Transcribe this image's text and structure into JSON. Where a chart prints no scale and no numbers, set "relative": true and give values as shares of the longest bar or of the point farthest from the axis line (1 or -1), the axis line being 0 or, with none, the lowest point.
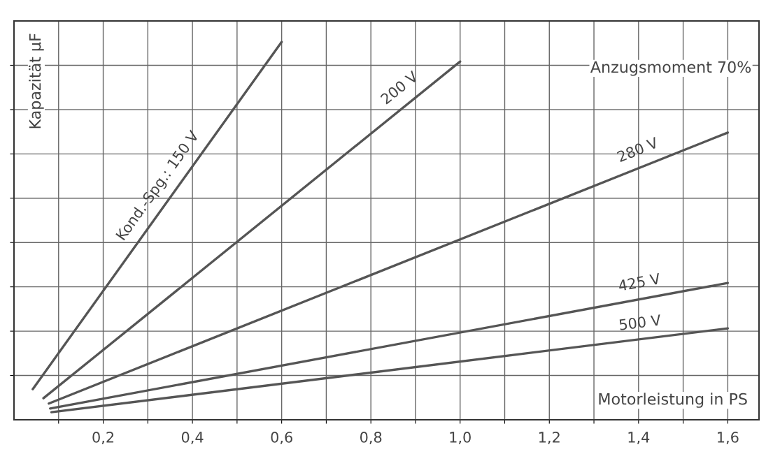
{
  "chart_data": {
    "type": "line",
    "relative": true,
    "xlabel": "Motorleistung in PS",
    "ylabel": "Kapazität µF",
    "annotations": [
      "Anzugsmoment 70%"
    ],
    "xlim": [
      0,
      1.67
    ],
    "xticks": [
      {
        "value": 0.1,
        "label": null
      },
      {
        "value": 0.2,
        "label": "0,2"
      },
      {
        "value": 0.3,
        "label": null
      },
      {
        "value": 0.4,
        "label": "0,4"
      },
      {
        "value": 0.5,
        "label": null
      },
      {
        "value": 0.6,
        "label": "0,6"
      },
      {
        "value": 0.7,
        "label": null
      },
      {
        "value": 0.8,
        "label": "0,8"
      },
      {
        "value": 0.9,
        "label": null
      },
      {
        "value": 1.0,
        "label": "1,0"
      },
      {
        "value": 1.1,
        "label": null
      },
      {
        "value": 1.2,
        "label": "1,2"
      },
      {
        "value": 1.3,
        "label": null
      },
      {
        "value": 1.4,
        "label": "1,4"
      },
      {
        "value": 1.5,
        "label": null
      },
      {
        "value": 1.6,
        "label": "1,6"
      }
    ],
    "grid": true,
    "line_style": "solid",
    "marker": "none",
    "series": [
      {
        "name": "Kond.-Spg.: 150 V",
        "color": "#555555",
        "x": [
          0.042,
          0.6
        ],
        "values": [
          0.081,
          1.0
        ]
      },
      {
        "name": "200 V",
        "color": "#555555",
        "x": [
          0.066,
          1.0
        ],
        "values": [
          0.057,
          0.948
        ]
      },
      {
        "name": "280 V",
        "color": "#555555",
        "x": [
          0.078,
          1.6
        ],
        "values": [
          0.043,
          0.76
        ]
      },
      {
        "name": "425 V",
        "color": "#555555",
        "x": [
          0.081,
          1.6
        ],
        "values": [
          0.03,
          0.362
        ]
      },
      {
        "name": "500 V",
        "color": "#555555",
        "x": [
          0.084,
          1.6
        ],
        "values": [
          0.02,
          0.242
        ]
      }
    ]
  }
}
